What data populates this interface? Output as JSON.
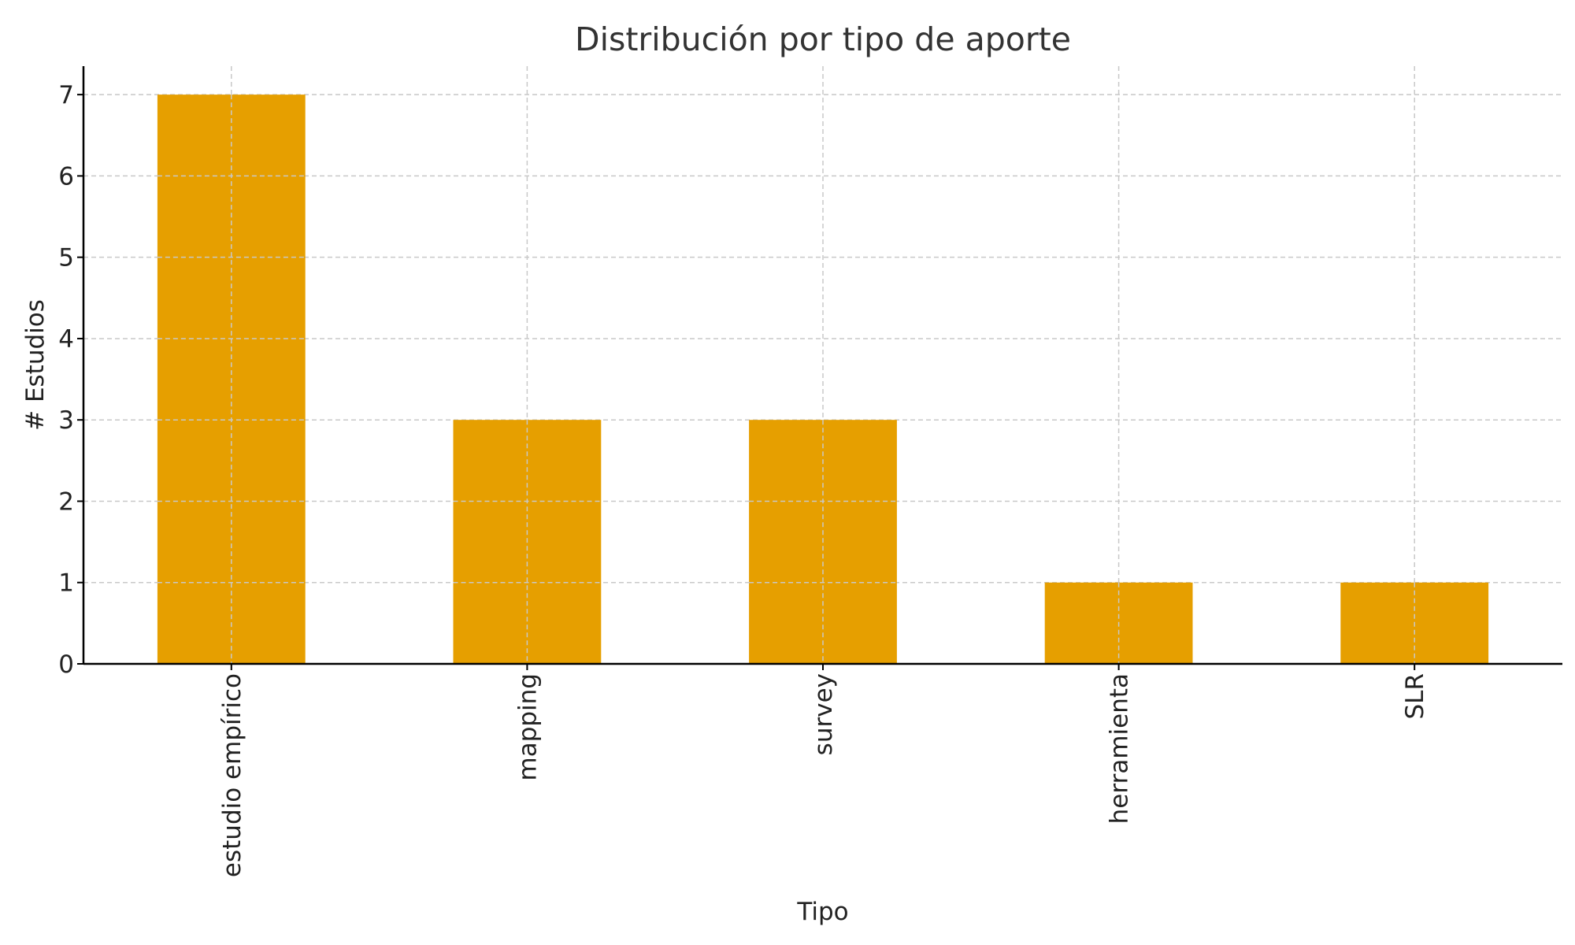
{
  "chart_data": {
    "type": "bar",
    "title": "Distribución por tipo de aporte",
    "xlabel": "Tipo",
    "ylabel": "# Estudios",
    "categories": [
      "estudio empírico",
      "mapping",
      "survey",
      "herramienta",
      "SLR"
    ],
    "values": [
      7,
      3,
      3,
      1,
      1
    ],
    "yticks": [
      0,
      1,
      2,
      3,
      4,
      5,
      6,
      7
    ],
    "ylim": [
      0,
      7.35
    ],
    "grid": true,
    "legend": "none",
    "bar_color": "#E69F00",
    "xtick_rotation": "vertical"
  }
}
